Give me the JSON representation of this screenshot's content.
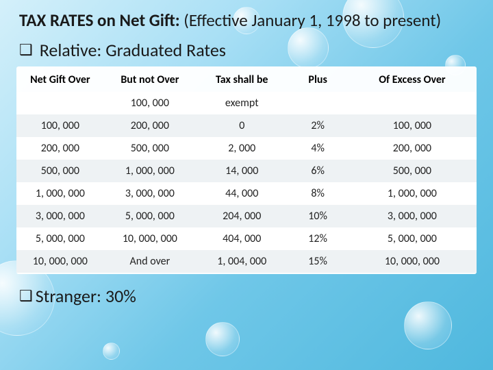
{
  "title": {
    "strong": "TAX RATES on Net Gift:",
    "rest": " (Effective January 1, 1998 to present)"
  },
  "relative": {
    "bullet_glyph": "❑",
    "text": " Relative: Graduated Rates"
  },
  "table": {
    "columns": [
      "Net Gift Over",
      "But not Over",
      "Tax shall be",
      "Plus",
      "Of Excess Over"
    ],
    "rows": [
      [
        "",
        "100, 000",
        "exempt",
        "",
        ""
      ],
      [
        "100, 000",
        "200, 000",
        "0",
        "2%",
        "100, 000"
      ],
      [
        "200, 000",
        "500, 000",
        "2, 000",
        "4%",
        "200, 000"
      ],
      [
        "500, 000",
        "1, 000, 000",
        "14, 000",
        "6%",
        "500, 000"
      ],
      [
        "1, 000, 000",
        "3, 000, 000",
        "44, 000",
        "8%",
        "1, 000, 000"
      ],
      [
        "3, 000, 000",
        "5, 000, 000",
        "204, 000",
        "10%",
        "3, 000, 000"
      ],
      [
        "5, 000, 000",
        "10, 000, 000",
        "404, 000",
        "12%",
        "5, 000, 000"
      ],
      [
        "10, 000, 000",
        "And over",
        "1, 004, 000",
        "15%",
        "10, 000, 000"
      ]
    ],
    "col_widths": [
      "19%",
      "20%",
      "20%",
      "13%",
      "28%"
    ],
    "header_bg": "#ffffff",
    "row_even_bg": "#eef2f4",
    "row_odd_bg": "#ffffff",
    "font_size_pt": 12
  },
  "stranger": {
    "bullet_glyph": "❑",
    "text": "Stranger: 30%"
  },
  "background": {
    "gradient_stops": [
      "#d4f0fa",
      "#a8dff5",
      "#6fc7e8",
      "#4fb8de"
    ]
  }
}
